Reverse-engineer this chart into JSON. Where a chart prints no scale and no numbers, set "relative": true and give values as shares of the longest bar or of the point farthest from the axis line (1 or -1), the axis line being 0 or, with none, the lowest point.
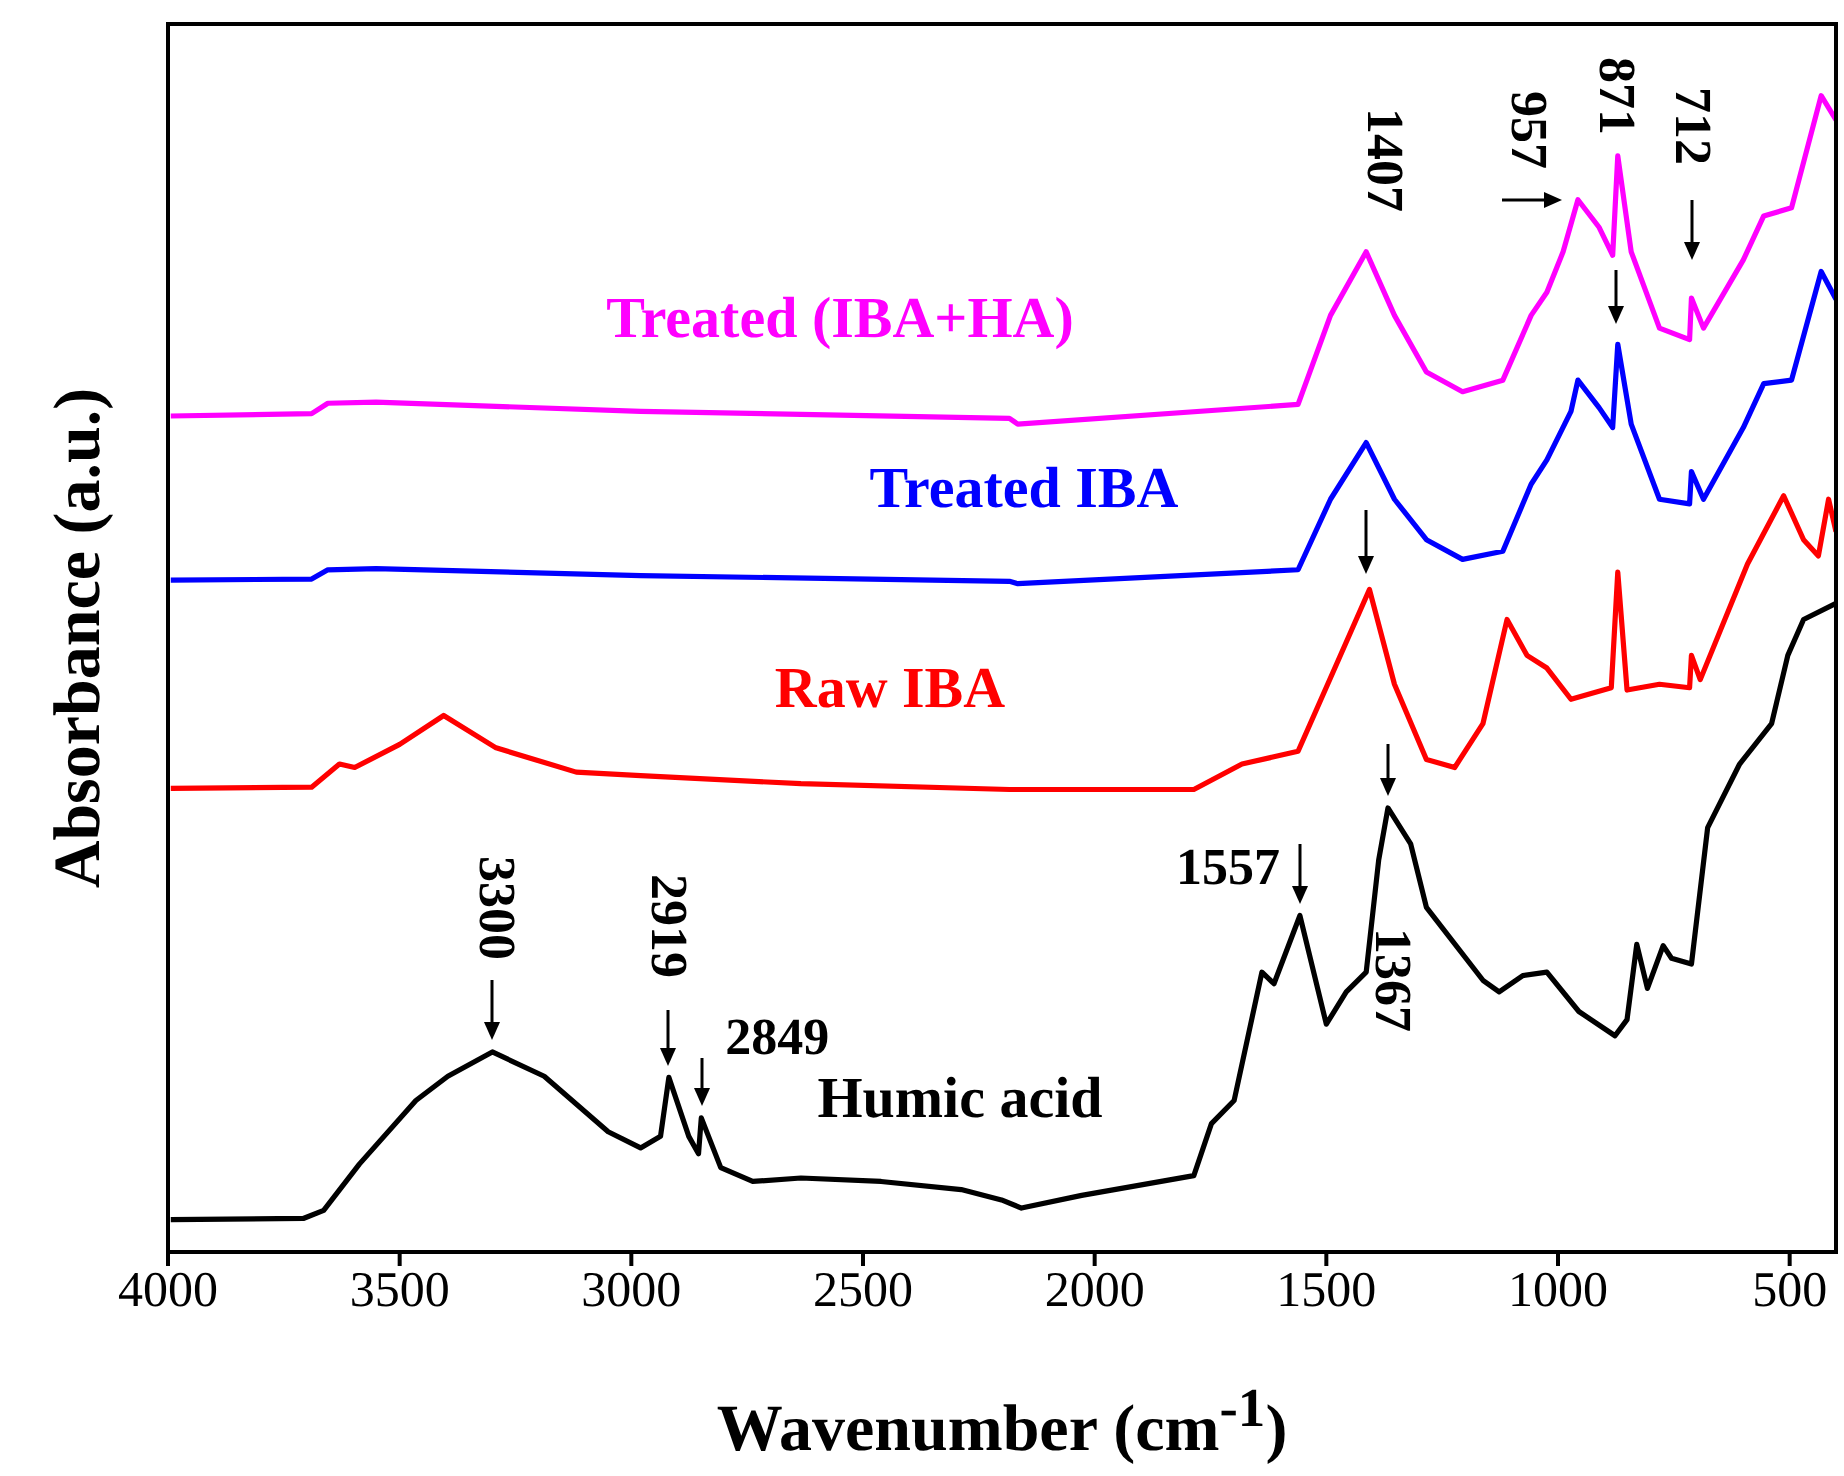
{
  "chart_data": {
    "type": "line",
    "relative": true,
    "xlabel": "Wavenumber (cm$^{-1}$)",
    "ylabel": "Absorbance (a.u.)",
    "xlim": [
      4000,
      400
    ],
    "xticks": [
      4000,
      3500,
      3000,
      2500,
      2000,
      1500,
      1000,
      500
    ],
    "tick_labels": "x",
    "marker": "none",
    "line_style": "solid",
    "series": [
      {
        "name": "Humic acid",
        "color": "#000000",
        "x": [
          3994,
          3708,
          3664,
          3587,
          3465,
          3396,
          3300,
          3188,
          3050,
          2980,
          2937,
          2919,
          2876,
          2855,
          2849,
          2807,
          2738,
          2634,
          2461,
          2288,
          2201,
          2158,
          2028,
          1786,
          1748,
          1699,
          1639,
          1613,
          1557,
          1500,
          1457,
          1414,
          1387,
          1367,
          1318,
          1284,
          1162,
          1127,
          1076,
          1024,
          955,
          877,
          851,
          830,
          807,
          773,
          755,
          712,
          677,
          608,
          539,
          504,
          470,
          400
        ],
        "values": [
          0.028,
          0.029,
          0.036,
          0.076,
          0.131,
          0.152,
          0.173,
          0.152,
          0.104,
          0.09,
          0.1,
          0.151,
          0.1,
          0.085,
          0.116,
          0.073,
          0.061,
          0.064,
          0.061,
          0.054,
          0.045,
          0.038,
          0.049,
          0.066,
          0.111,
          0.131,
          0.242,
          0.232,
          0.291,
          0.197,
          0.225,
          0.242,
          0.339,
          0.384,
          0.353,
          0.298,
          0.235,
          0.225,
          0.239,
          0.242,
          0.208,
          0.187,
          0.201,
          0.266,
          0.228,
          0.265,
          0.254,
          0.249,
          0.367,
          0.422,
          0.457,
          0.516,
          0.547,
          0.561
        ]
      },
      {
        "name": "Raw IBA",
        "color": "#ff0000",
        "x": [
          3994,
          3690,
          3630,
          3597,
          3500,
          3405,
          3292,
          3119,
          2980,
          2634,
          2184,
          1786,
          1682,
          1561,
          1474,
          1407,
          1353,
          1284,
          1223,
          1162,
          1110,
          1067,
          1024,
          972,
          885,
          871,
          851,
          781,
          716,
          712,
          693,
          591,
          513,
          470,
          438,
          416,
          400
        ],
        "values": [
          0.401,
          0.402,
          0.422,
          0.419,
          0.439,
          0.464,
          0.436,
          0.415,
          0.412,
          0.405,
          0.4,
          0.4,
          0.422,
          0.433,
          0.512,
          0.573,
          0.491,
          0.426,
          0.419,
          0.457,
          0.547,
          0.516,
          0.505,
          0.478,
          0.488,
          0.588,
          0.486,
          0.491,
          0.488,
          0.516,
          0.495,
          0.595,
          0.654,
          0.616,
          0.602,
          0.651,
          0.623
        ]
      },
      {
        "name": "Treated IBA",
        "color": "#0000ff",
        "x": [
          3994,
          3690,
          3655,
          3551,
          2980,
          2184,
          2166,
          1561,
          1491,
          1414,
          1353,
          1284,
          1206,
          1119,
          1058,
          1024,
          972,
          957,
          911,
          882,
          871,
          842,
          781,
          716,
          712,
          686,
          600,
          556,
          496,
          432,
          400
        ],
        "values": [
          0.581,
          0.582,
          0.59,
          0.591,
          0.585,
          0.58,
          0.578,
          0.59,
          0.651,
          0.7,
          0.651,
          0.616,
          0.599,
          0.606,
          0.664,
          0.685,
          0.727,
          0.754,
          0.73,
          0.713,
          0.785,
          0.716,
          0.651,
          0.647,
          0.675,
          0.651,
          0.713,
          0.751,
          0.754,
          0.848,
          0.824
        ]
      },
      {
        "name": "Treated (IBA+HA)",
        "color": "#ff00ff",
        "x": [
          3994,
          3690,
          3655,
          3551,
          2980,
          2184,
          2166,
          1561,
          1491,
          1414,
          1353,
          1284,
          1206,
          1119,
          1058,
          1024,
          989,
          957,
          911,
          882,
          871,
          842,
          781,
          716,
          712,
          686,
          600,
          556,
          496,
          432,
          400
        ],
        "values": [
          0.723,
          0.725,
          0.734,
          0.735,
          0.727,
          0.721,
          0.716,
          0.733,
          0.81,
          0.865,
          0.81,
          0.761,
          0.744,
          0.754,
          0.81,
          0.83,
          0.865,
          0.91,
          0.886,
          0.862,
          0.948,
          0.865,
          0.799,
          0.789,
          0.825,
          0.799,
          0.858,
          0.896,
          0.903,
          1,
          0.979
        ]
      }
    ],
    "annotations": [
      {
        "text": "3300",
        "x": 3300,
        "y": 0.173
      },
      {
        "text": "2919",
        "x": 2919,
        "y": 0.151
      },
      {
        "text": "2849",
        "x": 2849,
        "y": 0.116
      },
      {
        "text": "1557",
        "x": 1557,
        "y": 0.291
      },
      {
        "text": "1367",
        "x": 1367,
        "y": 0.384
      },
      "1407",
      {
        "text": "957",
        "x": 957,
        "y": 0.91
      },
      "871",
      {
        "text": "712",
        "x": 712,
        "y": 0.825
      }
    ]
  }
}
